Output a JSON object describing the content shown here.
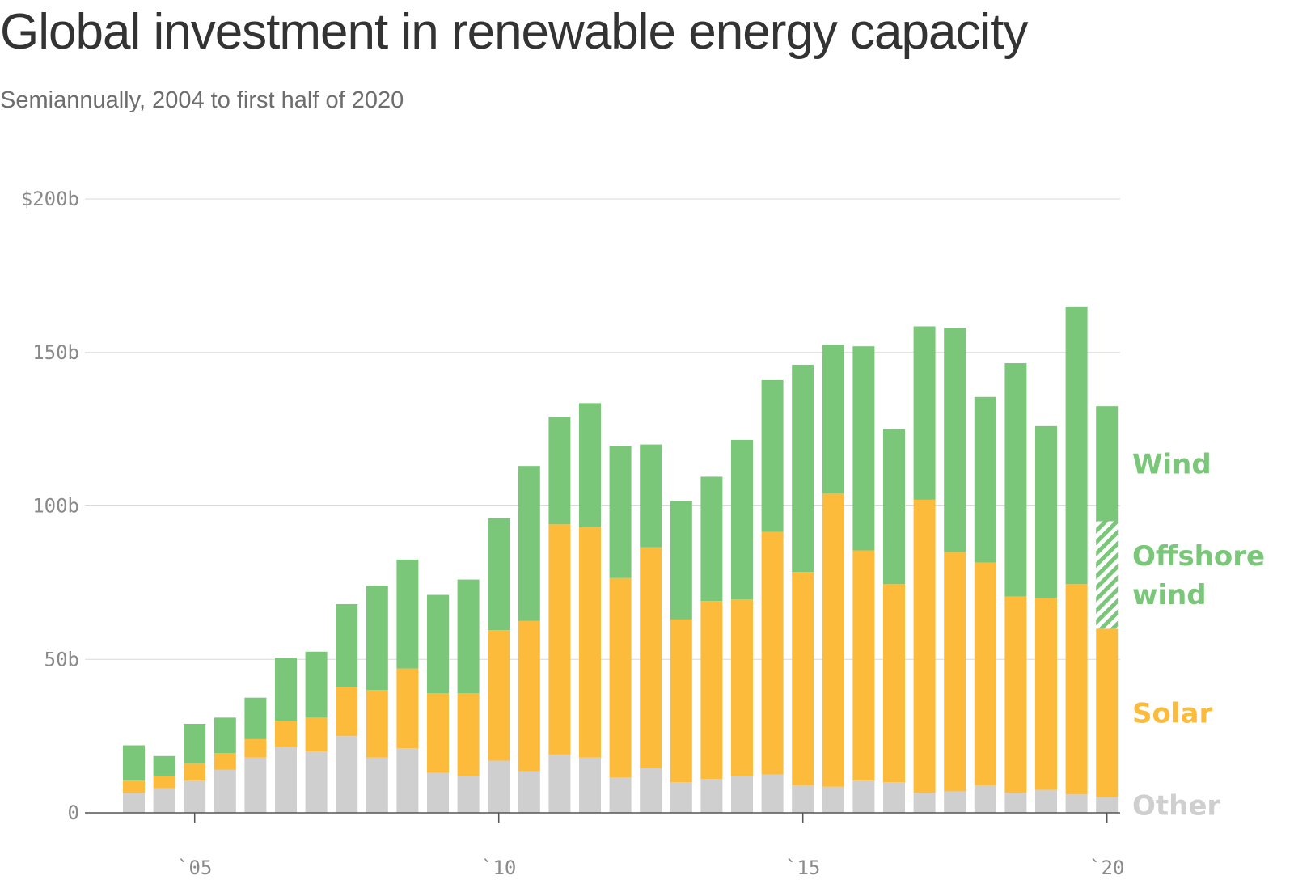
{
  "title": "Global investment in renewable energy capacity",
  "subtitle": "Semiannually, 2004 to first half of 2020",
  "chart_data": {
    "type": "bar",
    "stacked": true,
    "ylim": [
      0,
      200
    ],
    "y_ticks": [
      0,
      50,
      100,
      150,
      200
    ],
    "y_tick_labels": [
      "0",
      "50b",
      "100b",
      "150b",
      "$200b"
    ],
    "x_tick_labels": [
      "`05",
      "`10",
      "`15",
      "`20"
    ],
    "x_tick_years": [
      2005,
      2010,
      2015,
      2020
    ],
    "grid": true,
    "categories": [
      "2004 H1",
      "2004 H2",
      "2005 H1",
      "2005 H2",
      "2006 H1",
      "2006 H2",
      "2007 H1",
      "2007 H2",
      "2008 H1",
      "2008 H2",
      "2009 H1",
      "2009 H2",
      "2010 H1",
      "2010 H2",
      "2011 H1",
      "2011 H2",
      "2012 H1",
      "2012 H2",
      "2013 H1",
      "2013 H2",
      "2014 H1",
      "2014 H2",
      "2015 H1",
      "2015 H2",
      "2016 H1",
      "2016 H2",
      "2017 H1",
      "2017 H2",
      "2018 H1",
      "2018 H2",
      "2019 H1",
      "2019 H2",
      "2020 H1"
    ],
    "series": [
      {
        "name": "Other",
        "color": "#cfcfcf",
        "values": [
          6.5,
          8,
          10.5,
          14,
          18,
          21.5,
          20,
          25,
          18,
          21,
          13,
          12,
          17,
          13.5,
          19,
          18,
          11.5,
          14.5,
          10,
          11,
          12,
          12.5,
          9,
          8.5,
          10.5,
          10,
          6.5,
          7,
          9,
          6.5,
          7.5,
          6,
          5
        ]
      },
      {
        "name": "Solar",
        "color": "#fdbb3c",
        "values": [
          4,
          4,
          5.5,
          5.5,
          6,
          8.5,
          11,
          16,
          22,
          26,
          26,
          27,
          42.5,
          49,
          75,
          75,
          65,
          72,
          53,
          58,
          57.5,
          79,
          69.5,
          95.5,
          75,
          64.5,
          95.5,
          78,
          72.5,
          64,
          62.5,
          68.5,
          55
        ]
      },
      {
        "name": "Offshore wind",
        "color": "#7ac77a",
        "pattern": "hatched",
        "values": [
          0,
          0,
          0,
          0,
          0,
          0,
          0,
          0,
          0,
          0,
          0,
          0,
          0,
          0,
          0,
          0,
          0,
          0,
          0,
          0,
          0,
          0,
          0,
          0,
          0,
          0,
          0,
          0,
          0,
          0,
          0,
          0,
          35
        ]
      },
      {
        "name": "Wind",
        "color": "#7ac77a",
        "values": [
          11.5,
          6.5,
          13,
          11.5,
          13.5,
          20.5,
          21.5,
          27,
          34,
          35.5,
          32,
          37,
          36.5,
          50.5,
          35,
          40.5,
          43,
          33.5,
          38.5,
          40.5,
          52,
          49.5,
          67.5,
          48.5,
          66.5,
          50.5,
          56.5,
          73,
          54,
          76,
          56,
          90.5,
          37.5
        ]
      }
    ]
  }
}
